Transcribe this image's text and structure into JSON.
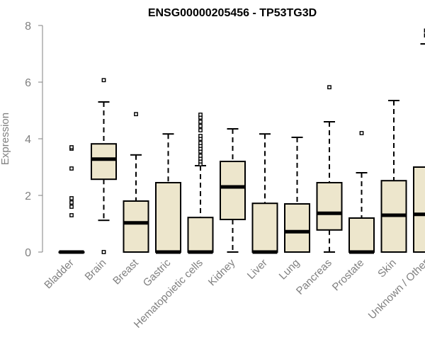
{
  "chart_data": {
    "type": "boxplot",
    "title": "ENSG00000205456 - TP53TG3D",
    "ylabel": "Expression",
    "xlabel": "",
    "ylim": [
      0,
      8
    ],
    "yticks": [
      0,
      2,
      4,
      6,
      8
    ],
    "grid": false,
    "legend": "none",
    "colors": {
      "box_fill": "#ede6cc",
      "box_stroke": "#000000",
      "axis": "#808080",
      "text": "#808080"
    },
    "categories": [
      "Bladder",
      "Brain",
      "Breast",
      "Gastric",
      "Hematopoietic cells",
      "Kidney",
      "Liver",
      "Lung",
      "Pancreas",
      "Prostate",
      "Skin",
      "Unknown / Other"
    ],
    "boxes": [
      {
        "category": "Bladder",
        "min": 0,
        "q1": 0,
        "median": 0,
        "q3": 0,
        "max": 0,
        "outliers": [
          1.3,
          1.6,
          1.75,
          1.9,
          2.95,
          3.65,
          3.7
        ]
      },
      {
        "category": "Brain",
        "min": 1.12,
        "q1": 2.57,
        "median": 3.28,
        "q3": 3.82,
        "max": 5.3,
        "outliers": [
          0,
          6.07
        ]
      },
      {
        "category": "Breast",
        "min": 0,
        "q1": 0,
        "median": 1.03,
        "q3": 1.8,
        "max": 3.43,
        "outliers": [
          4.87
        ]
      },
      {
        "category": "Gastric",
        "min": 0,
        "q1": 0,
        "median": 0,
        "q3": 2.45,
        "max": 4.17,
        "outliers": []
      },
      {
        "category": "Hematopoietic cells",
        "min": 0,
        "q1": 0,
        "median": 0,
        "q3": 1.22,
        "max": 3.05,
        "outliers": [
          3.1,
          3.2,
          3.3,
          3.4,
          3.55,
          3.65,
          3.75,
          3.85,
          4.0,
          4.1,
          4.3,
          4.45,
          4.6,
          4.75,
          4.85
        ]
      },
      {
        "category": "Kidney",
        "min": 0,
        "q1": 1.15,
        "median": 2.3,
        "q3": 3.2,
        "max": 4.35,
        "outliers": []
      },
      {
        "category": "Liver",
        "min": 0,
        "q1": 0,
        "median": 0,
        "q3": 1.72,
        "max": 4.17,
        "outliers": []
      },
      {
        "category": "Lung",
        "min": 0,
        "q1": 0,
        "median": 0.72,
        "q3": 1.7,
        "max": 4.05,
        "outliers": []
      },
      {
        "category": "Pancreas",
        "min": 0,
        "q1": 0.78,
        "median": 1.37,
        "q3": 2.45,
        "max": 4.6,
        "outliers": [
          5.82
        ]
      },
      {
        "category": "Prostate",
        "min": 0,
        "q1": 0,
        "median": 0,
        "q3": 1.2,
        "max": 2.8,
        "outliers": [
          4.2
        ]
      },
      {
        "category": "Skin",
        "min": 0,
        "q1": 0,
        "median": 1.3,
        "q3": 2.52,
        "max": 5.35,
        "outliers": []
      },
      {
        "category": "Unknown / Other",
        "min": 0,
        "q1": 0,
        "median": 1.33,
        "q3": 3.0,
        "max": 7.35,
        "outliers": [
          7.65,
          7.82
        ]
      }
    ]
  }
}
